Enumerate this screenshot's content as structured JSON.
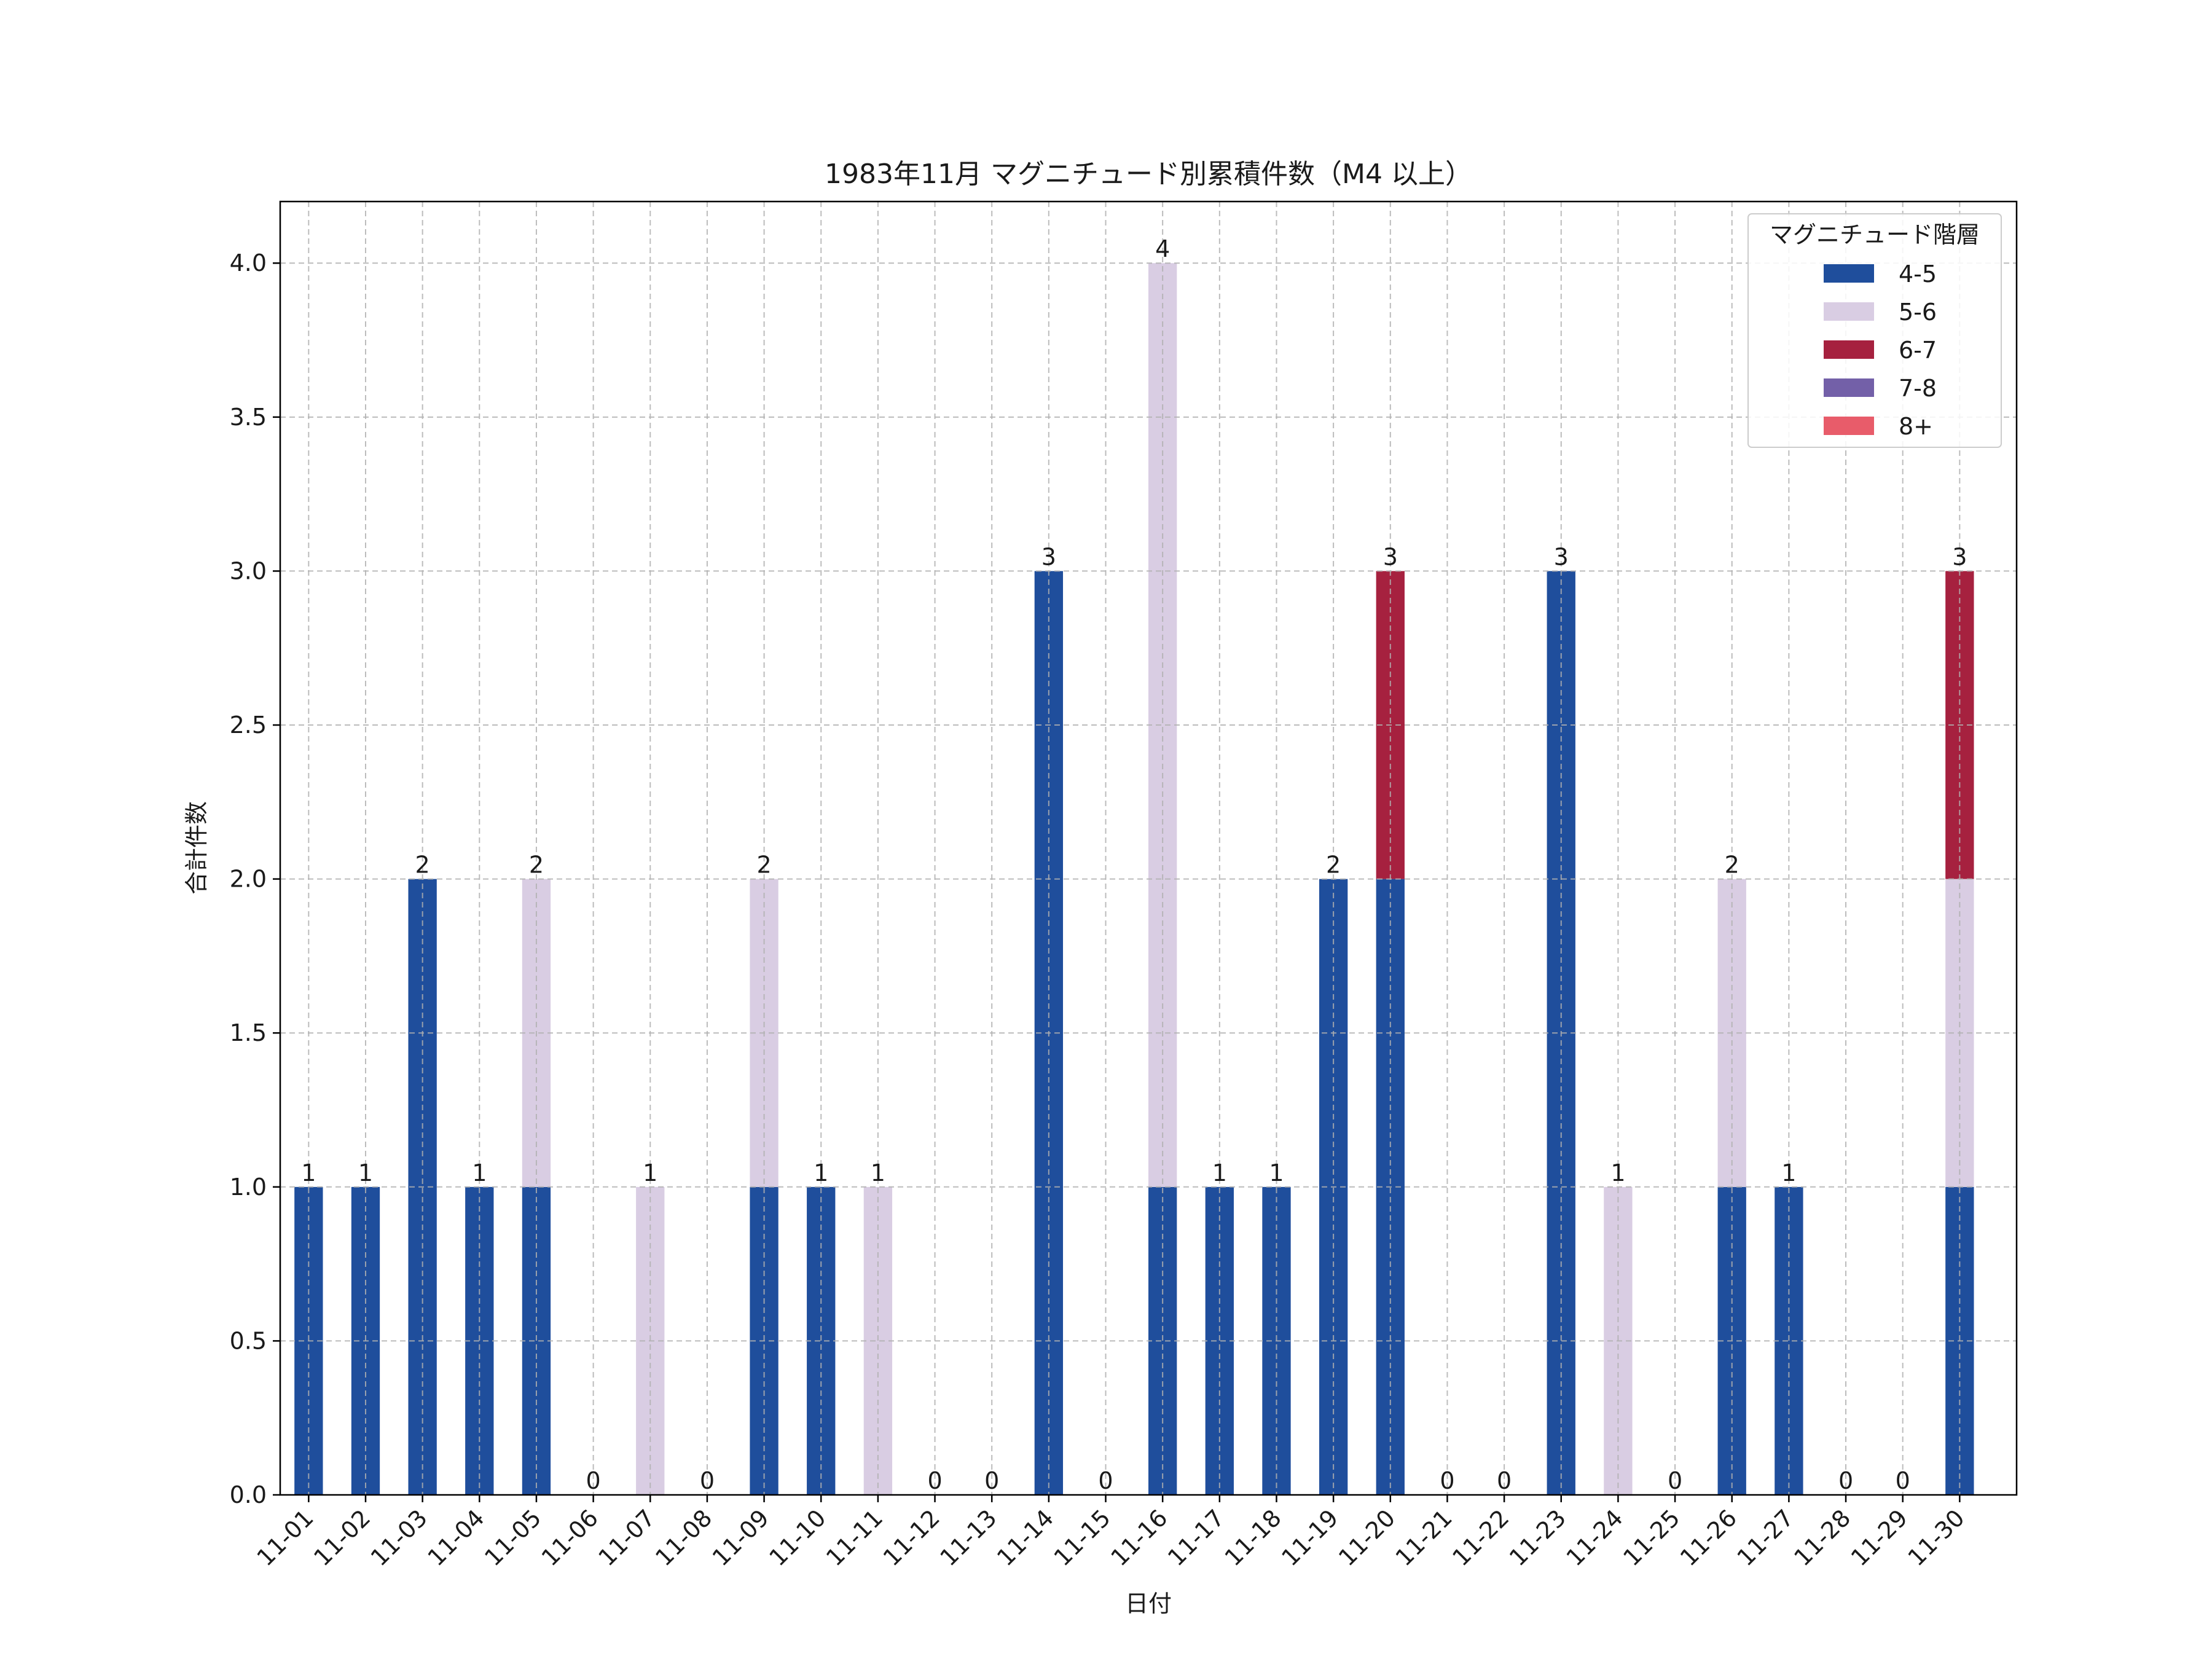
{
  "chart_data": {
    "type": "bar",
    "stacked": true,
    "title": "1983年11月 マグニチュード別累積件数（M4 以上）",
    "xlabel": "日付",
    "ylabel": "合計件数",
    "ylim": [
      0,
      4.2
    ],
    "yticks": [
      "0.0",
      "0.5",
      "1.0",
      "1.5",
      "2.0",
      "2.5",
      "3.0",
      "3.5",
      "4.0"
    ],
    "grid": true,
    "legend": {
      "title": "マグニチュード階層",
      "position": "top-right"
    },
    "categories": [
      "11-01",
      "11-02",
      "11-03",
      "11-04",
      "11-05",
      "11-06",
      "11-07",
      "11-08",
      "11-09",
      "11-10",
      "11-11",
      "11-12",
      "11-13",
      "11-14",
      "11-15",
      "11-16",
      "11-17",
      "11-18",
      "11-19",
      "11-20",
      "11-21",
      "11-22",
      "11-23",
      "11-24",
      "11-25",
      "11-26",
      "11-27",
      "11-28",
      "11-29",
      "11-30"
    ],
    "series": [
      {
        "name": "4-5",
        "color": "#1f4e9c",
        "values": [
          1,
          1,
          2,
          1,
          1,
          0,
          0,
          0,
          1,
          1,
          0,
          0,
          0,
          3,
          0,
          1,
          1,
          1,
          2,
          2,
          0,
          0,
          3,
          0,
          0,
          1,
          1,
          0,
          0,
          1
        ]
      },
      {
        "name": "5-6",
        "color": "#d9cde3",
        "values": [
          0,
          0,
          0,
          0,
          1,
          0,
          1,
          0,
          1,
          0,
          1,
          0,
          0,
          0,
          0,
          3,
          0,
          0,
          0,
          0,
          0,
          0,
          0,
          1,
          0,
          1,
          0,
          0,
          0,
          1
        ]
      },
      {
        "name": "6-7",
        "color": "#a6213f",
        "values": [
          0,
          0,
          0,
          0,
          0,
          0,
          0,
          0,
          0,
          0,
          0,
          0,
          0,
          0,
          0,
          0,
          0,
          0,
          0,
          1,
          0,
          0,
          0,
          0,
          0,
          0,
          0,
          0,
          0,
          1
        ]
      },
      {
        "name": "7-8",
        "color": "#7360a8",
        "values": [
          0,
          0,
          0,
          0,
          0,
          0,
          0,
          0,
          0,
          0,
          0,
          0,
          0,
          0,
          0,
          0,
          0,
          0,
          0,
          0,
          0,
          0,
          0,
          0,
          0,
          0,
          0,
          0,
          0,
          0
        ]
      },
      {
        "name": "8+",
        "color": "#e85c6a",
        "values": [
          0,
          0,
          0,
          0,
          0,
          0,
          0,
          0,
          0,
          0,
          0,
          0,
          0,
          0,
          0,
          0,
          0,
          0,
          0,
          0,
          0,
          0,
          0,
          0,
          0,
          0,
          0,
          0,
          0,
          0
        ]
      }
    ],
    "totals": [
      1,
      1,
      2,
      1,
      2,
      0,
      1,
      0,
      2,
      1,
      1,
      0,
      0,
      3,
      0,
      4,
      1,
      1,
      2,
      3,
      0,
      0,
      3,
      1,
      0,
      2,
      1,
      0,
      0,
      3
    ]
  }
}
